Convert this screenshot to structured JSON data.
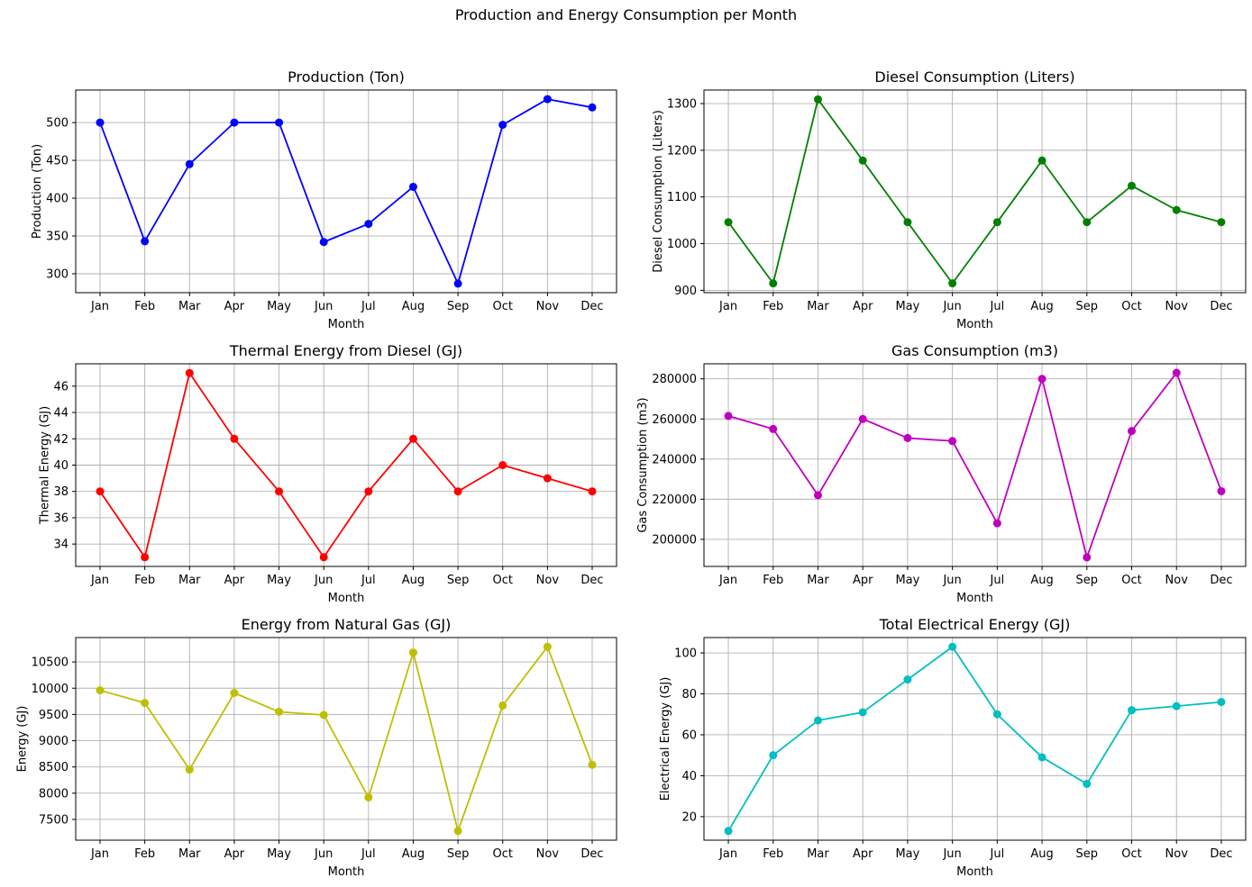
{
  "figure_title": "Production and Energy Consumption per Month",
  "chart_data": [
    {
      "type": "line",
      "title": "Production (Ton)",
      "xlabel": "Month",
      "ylabel": "Production (Ton)",
      "categories": [
        "Jan",
        "Feb",
        "Mar",
        "Apr",
        "May",
        "Jun",
        "Jul",
        "Aug",
        "Sep",
        "Oct",
        "Nov",
        "Dec"
      ],
      "series": [
        {
          "values": [
            500,
            343,
            445,
            500,
            500,
            342,
            366,
            415,
            287,
            497,
            531,
            520
          ],
          "color": "#0000ff"
        }
      ],
      "ylim": [
        275,
        543
      ],
      "yticks": [
        300,
        350,
        400,
        450,
        500
      ],
      "grid": true
    },
    {
      "type": "line",
      "title": "Diesel Consumption (Liters)",
      "xlabel": "Month",
      "ylabel": "Diesel Consumption (Liters)",
      "categories": [
        "Jan",
        "Feb",
        "Mar",
        "Apr",
        "May",
        "Jun",
        "Jul",
        "Aug",
        "Sep",
        "Oct",
        "Nov",
        "Dec"
      ],
      "series": [
        {
          "values": [
            1046,
            915,
            1309,
            1178,
            1046,
            915,
            1046,
            1178,
            1046,
            1124,
            1072,
            1046
          ],
          "color": "#008000"
        }
      ],
      "ylim": [
        895,
        1329
      ],
      "yticks": [
        900,
        1000,
        1100,
        1200,
        1300
      ],
      "grid": true
    },
    {
      "type": "line",
      "title": "Thermal Energy from Diesel (GJ)",
      "xlabel": "Month",
      "ylabel": "Thermal Energy (GJ)",
      "categories": [
        "Jan",
        "Feb",
        "Mar",
        "Apr",
        "May",
        "Jun",
        "Jul",
        "Aug",
        "Sep",
        "Oct",
        "Nov",
        "Dec"
      ],
      "series": [
        {
          "values": [
            38,
            33,
            47,
            42,
            38,
            33,
            38,
            42,
            38,
            40,
            39,
            38
          ],
          "color": "#ff0000"
        }
      ],
      "ylim": [
        32.3,
        47.7
      ],
      "yticks": [
        34,
        36,
        38,
        40,
        42,
        44,
        46
      ],
      "grid": true
    },
    {
      "type": "line",
      "title": "Gas Consumption (m3)",
      "xlabel": "Month",
      "ylabel": "Gas Consumption (m3)",
      "categories": [
        "Jan",
        "Feb",
        "Mar",
        "Apr",
        "May",
        "Jun",
        "Jul",
        "Aug",
        "Sep",
        "Oct",
        "Nov",
        "Dec"
      ],
      "series": [
        {
          "values": [
            261500,
            255000,
            222000,
            260000,
            250500,
            249000,
            208000,
            280000,
            191000,
            254000,
            283000,
            224000
          ],
          "color": "#bf00bf"
        }
      ],
      "ylim": [
        186500,
        287500
      ],
      "yticks": [
        200000,
        220000,
        240000,
        260000,
        280000
      ],
      "grid": true
    },
    {
      "type": "line",
      "title": "Energy from Natural Gas (GJ)",
      "xlabel": "Month",
      "ylabel": "Energy (GJ)",
      "categories": [
        "Jan",
        "Feb",
        "Mar",
        "Apr",
        "May",
        "Jun",
        "Jul",
        "Aug",
        "Sep",
        "Oct",
        "Nov",
        "Dec"
      ],
      "series": [
        {
          "values": [
            9960,
            9720,
            8450,
            9910,
            9550,
            9490,
            7920,
            10680,
            7280,
            9670,
            10790,
            8540
          ],
          "color": "#bfbf00"
        }
      ],
      "ylim": [
        7105,
        10965
      ],
      "yticks": [
        7500,
        8000,
        8500,
        9000,
        9500,
        10000,
        10500
      ],
      "grid": true
    },
    {
      "type": "line",
      "title": "Total Electrical Energy (GJ)",
      "xlabel": "Month",
      "ylabel": "Electrical Energy (GJ)",
      "categories": [
        "Jan",
        "Feb",
        "Mar",
        "Apr",
        "May",
        "Jun",
        "Jul",
        "Aug",
        "Sep",
        "Oct",
        "Nov",
        "Dec"
      ],
      "series": [
        {
          "values": [
            13,
            50,
            67,
            71,
            87,
            103,
            70,
            49,
            36,
            72,
            74,
            76
          ],
          "color": "#00bfbf"
        }
      ],
      "ylim": [
        8.5,
        107.5
      ],
      "yticks": [
        20,
        40,
        60,
        80,
        100
      ],
      "grid": true
    }
  ]
}
